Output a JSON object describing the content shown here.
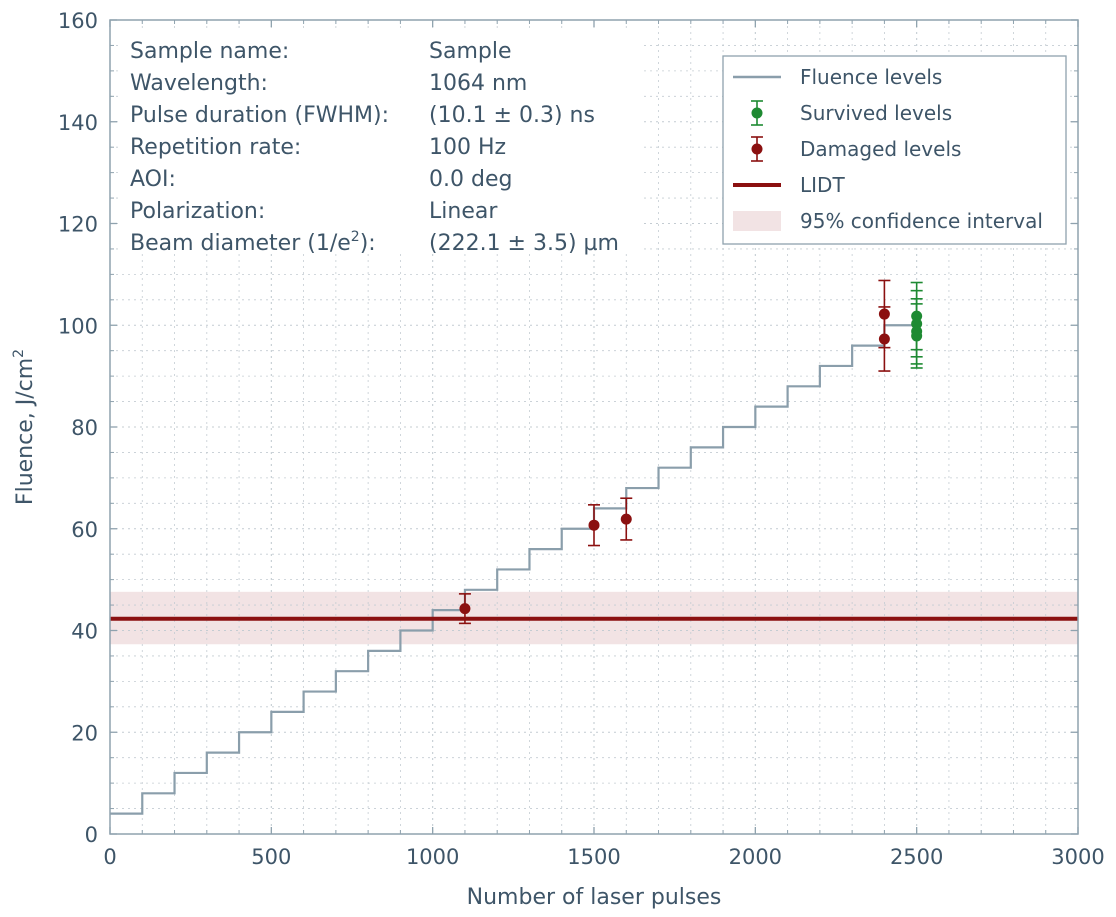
{
  "chart_data": {
    "type": "line",
    "xlabel": "Number of laser pulses",
    "ylabel": "Fluence, J/cm",
    "ylabel_superscript": "2",
    "xlim": [
      0,
      3000
    ],
    "ylim": [
      0,
      160
    ],
    "x_ticks": [
      "0",
      "500",
      "1000",
      "1500",
      "2000",
      "2500",
      "3000"
    ],
    "y_ticks": [
      "0",
      "20",
      "40",
      "60",
      "80",
      "100",
      "120",
      "140",
      "160"
    ],
    "grid": true,
    "legend_position": "top-right",
    "info": [
      {
        "label": "Sample name:",
        "value": "Sample"
      },
      {
        "label": "Wavelength:",
        "value": "1064 nm"
      },
      {
        "label": "Pulse duration (FWHM):",
        "value": "(10.1 ± 0.3) ns"
      },
      {
        "label": "Repetition rate:",
        "value": "100 Hz"
      },
      {
        "label": "AOI:",
        "value": "0.0 deg"
      },
      {
        "label": "Polarization:",
        "value": "Linear"
      },
      {
        "label": "Beam diameter (1/e",
        "label_superscript": "2",
        "label_suffix": "):",
        "value": "(222.1 ± 3.5) µm"
      }
    ],
    "legend": [
      {
        "key": "fluence",
        "label": "Fluence levels"
      },
      {
        "key": "survived",
        "label": "Survived levels"
      },
      {
        "key": "damaged",
        "label": "Damaged levels"
      },
      {
        "key": "lidt",
        "label": "LIDT"
      },
      {
        "key": "ci",
        "label": "95% confidence interval"
      }
    ],
    "fluence_steps": {
      "x_start": 0,
      "step_width": 100,
      "levels": [
        4,
        8,
        12,
        16,
        20,
        24,
        28,
        32,
        36,
        40,
        44,
        48,
        52,
        56,
        60,
        64,
        68,
        72,
        76,
        80,
        84,
        88,
        92,
        96,
        100
      ],
      "x_end": 2500
    },
    "survived_points": [
      {
        "x": 2500,
        "y": 101.8,
        "err": 6.6
      },
      {
        "x": 2500,
        "y": 100.3,
        "err": 6.5
      },
      {
        "x": 2500,
        "y": 98.8,
        "err": 6.4
      },
      {
        "x": 2500,
        "y": 97.9,
        "err": 6.3
      }
    ],
    "damaged_points": [
      {
        "x": 1100,
        "y": 44.3,
        "err": 2.9
      },
      {
        "x": 1500,
        "y": 60.7,
        "err": 4.0
      },
      {
        "x": 1600,
        "y": 61.9,
        "err": 4.1
      },
      {
        "x": 2400,
        "y": 102.2,
        "err": 6.6
      },
      {
        "x": 2400,
        "y": 97.3,
        "err": 6.3
      }
    ],
    "lidt": 42.3,
    "ci": [
      37.3,
      47.6
    ],
    "colors": {
      "fluence": "#8a9eab",
      "survived": "#1e8a32",
      "damaged": "#8b1010",
      "lidt": "#8b1010",
      "ci": "#f2e3e4",
      "axis": "#8fa2ae",
      "grid": "#c4ccd2",
      "text": "#3e5568"
    }
  }
}
